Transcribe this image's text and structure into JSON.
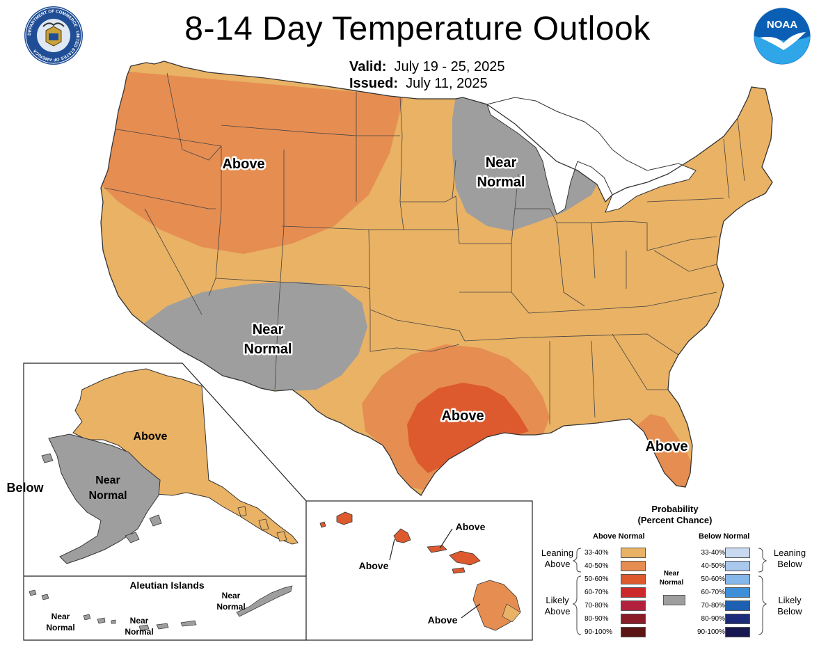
{
  "header": {
    "title": "8-14 Day Temperature Outlook",
    "valid_label": "Valid:",
    "valid_value": "July 19 - 25, 2025",
    "issued_label": "Issued:",
    "issued_value": "July 11, 2025"
  },
  "logos": {
    "left": "department-of-commerce-seal",
    "left_seal_text": "DEPARTMENT OF COMMERCE · UNITED STATES OF AMERICA",
    "right": "noaa-logo",
    "right_text": "NOAA"
  },
  "map": {
    "conus_labels": {
      "northwest_above": "Above",
      "midwest_near_normal_1": "Near",
      "midwest_near_normal_2": "Normal",
      "southwest_near_normal_1": "Near",
      "southwest_near_normal_2": "Normal",
      "gulf_above": "Above",
      "florida_above": "Above"
    },
    "alaska_labels": {
      "above": "Above",
      "near_normal_1": "Near",
      "near_normal_2": "Normal",
      "below": "Below"
    },
    "aleutian": {
      "title": "Aleutian Islands",
      "near1_a": "Near",
      "near1_b": "Normal",
      "near2_a": "Near",
      "near2_b": "Normal",
      "near3_a": "Near",
      "near3_b": "Normal"
    },
    "hawaii_labels": {
      "above_1": "Above",
      "above_2": "Above",
      "above_3": "Above"
    },
    "colors": {
      "above_33_40": "#e9b264",
      "above_40_50": "#e68d52",
      "above_50_60": "#dd5a2f",
      "near_normal": "#9e9e9e",
      "lakes": "#ffffff",
      "border": "#333333"
    }
  },
  "legend": {
    "title_1": "Probability",
    "title_2": "(Percent Chance)",
    "above_header": "Above Normal",
    "below_header": "Below Normal",
    "near_label_1": "Near",
    "near_label_2": "Normal",
    "leaning_above_1": "Leaning",
    "leaning_above_2": "Above",
    "likely_above_1": "Likely",
    "likely_above_2": "Above",
    "leaning_below_1": "Leaning",
    "leaning_below_2": "Below",
    "likely_below_1": "Likely",
    "likely_below_2": "Below",
    "above_rows": [
      {
        "label": "33-40%",
        "color": "#e9b264"
      },
      {
        "label": "40-50%",
        "color": "#e68d52"
      },
      {
        "label": "50-60%",
        "color": "#dd5a2f"
      },
      {
        "label": "60-70%",
        "color": "#cc2a2a"
      },
      {
        "label": "70-80%",
        "color": "#b3203d"
      },
      {
        "label": "80-90%",
        "color": "#8a1c28"
      },
      {
        "label": "90-100%",
        "color": "#5c1414"
      }
    ],
    "below_rows": [
      {
        "label": "33-40%",
        "color": "#c9daf0"
      },
      {
        "label": "40-50%",
        "color": "#a9c8ec"
      },
      {
        "label": "50-60%",
        "color": "#86b7ea"
      },
      {
        "label": "60-70%",
        "color": "#3f8fd8"
      },
      {
        "label": "70-80%",
        "color": "#1d5fb0"
      },
      {
        "label": "80-90%",
        "color": "#1c2a7a"
      },
      {
        "label": "90-100%",
        "color": "#17184f"
      }
    ]
  }
}
